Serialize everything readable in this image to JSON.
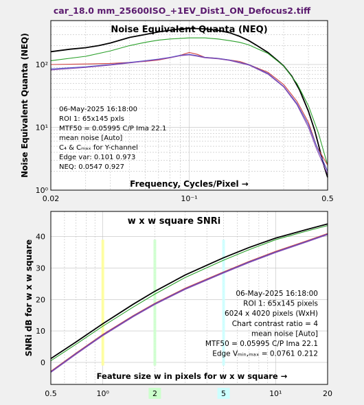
{
  "figure_title": "car_18.0 mm_25600ISO_+1EV_Dist1_ON_Defocus2.tiff",
  "colors": {
    "title": "#5a1a6e",
    "plot_bg": "#ffffff",
    "black": "#000000",
    "green": "#2aa02a",
    "red": "#d04040",
    "blue": "#5050c8",
    "purple": "#8a4ab0"
  },
  "chart_data": [
    {
      "type": "line",
      "title": "Noise Equivalent Quanta (NEQ)",
      "xlabel": "Frequency, Cycles/Pixel →",
      "ylabel": "Noise Equivalent Quanta (NEQ)",
      "xscale": "log",
      "yscale": "log",
      "xlim": [
        0.02,
        0.5
      ],
      "ylim": [
        1,
        500
      ],
      "x_ticks": [
        "0.02",
        "10⁻¹",
        "0.5"
      ],
      "y_ticks": [
        "10⁰",
        "10¹",
        "10²"
      ],
      "grid": true,
      "annotation_lines": [
        "06-May-2025 16:18:00",
        "ROI 1:  65x145 pxls",
        "MTF50 = 0.05995 C/P  Ima 22.1",
        "mean noise  [Auto]",
        "C₄ & Cₘₐₓ  for Y-channel",
        "Edge var:  0.101  0.973",
        "NEQ:      0.0547  0.927"
      ],
      "series": [
        {
          "color": "black",
          "x": [
            0.02,
            0.025,
            0.03,
            0.035,
            0.04,
            0.05,
            0.06,
            0.07,
            0.08,
            0.09,
            0.1,
            0.12,
            0.14,
            0.16,
            0.18,
            0.2,
            0.22,
            0.25,
            0.28,
            0.3,
            0.33,
            0.36,
            0.4,
            0.43,
            0.46,
            0.48,
            0.5
          ],
          "y": [
            160,
            175,
            185,
            200,
            220,
            270,
            300,
            330,
            350,
            370,
            375,
            370,
            350,
            320,
            280,
            240,
            200,
            155,
            115,
            95,
            65,
            40,
            18,
            9,
            4,
            2.4,
            1.6
          ]
        },
        {
          "color": "green",
          "x": [
            0.02,
            0.03,
            0.04,
            0.05,
            0.06,
            0.07,
            0.08,
            0.1,
            0.12,
            0.14,
            0.16,
            0.18,
            0.2,
            0.25,
            0.3,
            0.35,
            0.4,
            0.45,
            0.5
          ],
          "y": [
            115,
            135,
            165,
            200,
            225,
            245,
            255,
            265,
            265,
            255,
            240,
            225,
            205,
            150,
            95,
            50,
            22,
            8,
            2.5
          ]
        },
        {
          "color": "red",
          "x": [
            0.02,
            0.03,
            0.04,
            0.05,
            0.06,
            0.07,
            0.08,
            0.09,
            0.1,
            0.11,
            0.12,
            0.13,
            0.14,
            0.16,
            0.18,
            0.2,
            0.25,
            0.3,
            0.35,
            0.4,
            0.44,
            0.5
          ],
          "y": [
            100,
            102,
            104,
            108,
            112,
            118,
            128,
            140,
            155,
            145,
            130,
            128,
            125,
            118,
            112,
            100,
            75,
            48,
            26,
            12,
            5,
            2.5
          ]
        },
        {
          "color": "blue",
          "x": [
            0.02,
            0.03,
            0.04,
            0.05,
            0.06,
            0.07,
            0.08,
            0.09,
            0.1,
            0.11,
            0.12,
            0.14,
            0.16,
            0.2,
            0.25,
            0.3,
            0.35,
            0.4,
            0.44,
            0.5
          ],
          "y": [
            85,
            92,
            100,
            108,
            115,
            122,
            130,
            140,
            145,
            138,
            130,
            125,
            118,
            100,
            72,
            45,
            24,
            11,
            5,
            2
          ]
        },
        {
          "color": "purple",
          "x": [
            0.02,
            0.03,
            0.04,
            0.05,
            0.06,
            0.07,
            0.08,
            0.09,
            0.1,
            0.11,
            0.12,
            0.14,
            0.16,
            0.2,
            0.25,
            0.3,
            0.35,
            0.4,
            0.44,
            0.5
          ],
          "y": [
            82,
            90,
            98,
            106,
            113,
            120,
            128,
            138,
            142,
            135,
            128,
            123,
            116,
            98,
            70,
            44,
            23,
            10,
            4.5,
            1.8
          ]
        }
      ]
    },
    {
      "type": "line",
      "title": "w x w square SNRi",
      "xlabel": "Feature size w in pixels for w x w square →",
      "ylabel": "SNRi dB for w x w square",
      "xscale": "log",
      "xlim": [
        0.5,
        20
      ],
      "ylim": [
        -7,
        48
      ],
      "x_ticks": [
        "0.5",
        "10⁰",
        "2",
        "5",
        "10¹",
        "20"
      ],
      "y_ticks": [
        "0",
        "10",
        "20",
        "30",
        "40"
      ],
      "grid": true,
      "highlight_x": [
        {
          "x": 1,
          "color": "#ffff99",
          "label": ""
        },
        {
          "x": 2,
          "color": "#ccffcc",
          "label": "2"
        },
        {
          "x": 5,
          "color": "#ccffff",
          "label": "5"
        }
      ],
      "annotation_lines": [
        "06-May-2025 16:18:00",
        "ROI 1:  65x145 pixels",
        "6024 x 4020 pixels (WxH)",
        "Chart contrast ratio = 4",
        "mean noise  [Auto]",
        "MTF50 = 0.05995 C/P  Ima 22.1",
        "Edge Vₘᵢₙ,ₘₐₓ = 0.0761 0.212"
      ],
      "series": [
        {
          "color": "black",
          "x": [
            0.5,
            0.7,
            1,
            1.5,
            2,
            3,
            5,
            7,
            10,
            15,
            20
          ],
          "y": [
            1.2,
            6.5,
            12.3,
            18.5,
            22.6,
            27.8,
            33.3,
            36.5,
            39.5,
            42.2,
            44.0
          ]
        },
        {
          "color": "green",
          "x": [
            0.5,
            0.7,
            1,
            1.5,
            2,
            3,
            5,
            7,
            10,
            15,
            20
          ],
          "y": [
            0.5,
            5.8,
            11.5,
            17.6,
            21.7,
            27.0,
            32.5,
            35.8,
            39.0,
            41.7,
            43.5
          ]
        },
        {
          "color": "red",
          "x": [
            0.5,
            0.7,
            1,
            1.5,
            2,
            3,
            5,
            7,
            10,
            15,
            20
          ],
          "y": [
            -2.8,
            3.0,
            8.9,
            14.9,
            18.8,
            23.6,
            28.8,
            32.1,
            35.3,
            38.6,
            41.0
          ]
        },
        {
          "color": "blue",
          "x": [
            0.5,
            0.7,
            1,
            1.5,
            2,
            3,
            5,
            7,
            10,
            15,
            20
          ],
          "y": [
            -3.0,
            2.8,
            8.7,
            14.7,
            18.6,
            23.4,
            28.6,
            31.9,
            35.1,
            38.4,
            40.8
          ]
        },
        {
          "color": "purple",
          "x": [
            0.5,
            0.7,
            1,
            1.5,
            2,
            3,
            5,
            7,
            10,
            15,
            20
          ],
          "y": [
            -3.2,
            2.6,
            8.5,
            14.5,
            18.4,
            23.2,
            28.4,
            31.7,
            34.9,
            38.2,
            40.6
          ]
        }
      ]
    }
  ]
}
